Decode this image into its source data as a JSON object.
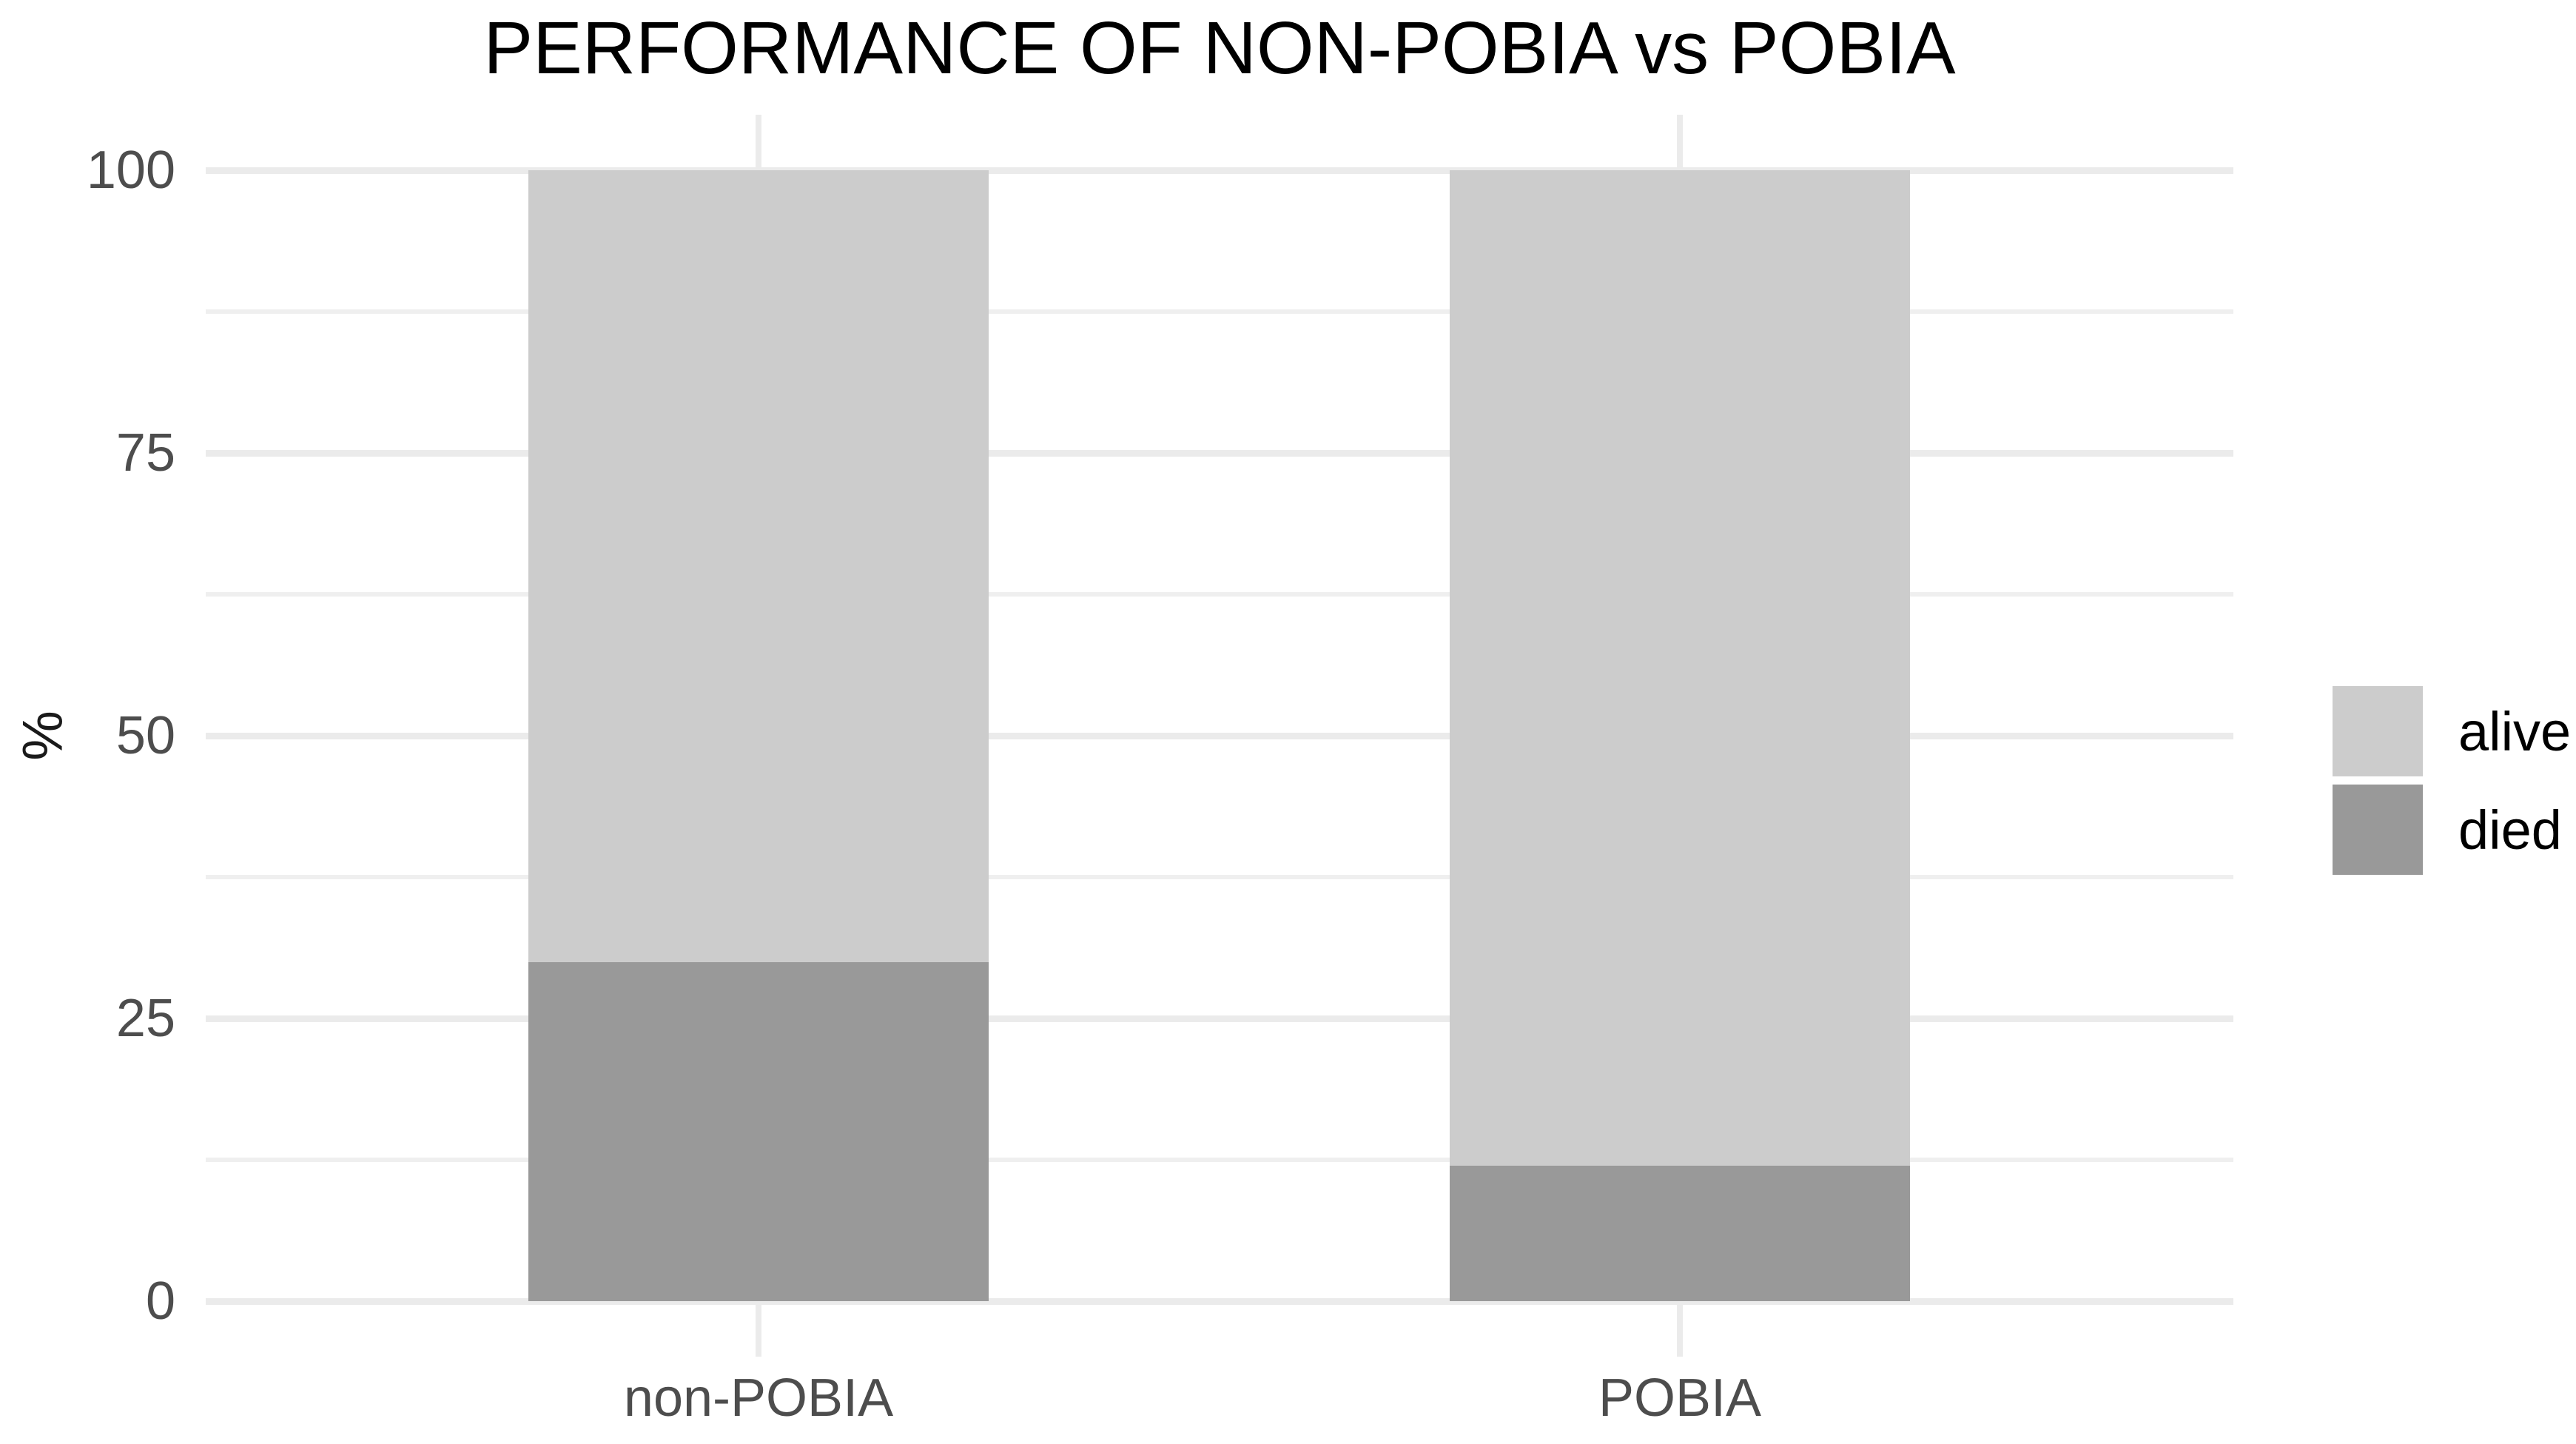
{
  "chart_data": {
    "type": "bar",
    "subtype": "stacked-percent",
    "title": "PERFORMANCE OF NON-POBIA vs POBIA",
    "xlabel": "",
    "ylabel": "%",
    "categories": [
      "non-POBIA",
      "POBIA"
    ],
    "series": [
      {
        "name": "alive",
        "color": "#cccccc",
        "values": [
          70,
          88
        ]
      },
      {
        "name": "died",
        "color": "#999999",
        "values": [
          30,
          12
        ]
      }
    ],
    "stack_bottom_to_top": [
      "died",
      "alive"
    ],
    "ylim": [
      0,
      100
    ],
    "yticks_major": [
      0,
      25,
      50,
      75,
      100
    ],
    "yticks_minor": [
      12.5,
      37.5,
      62.5,
      87.5
    ],
    "grid": "horizontal major+minor, vertical stubs at category centers",
    "legend_position": "right",
    "legend_entries": [
      "alive",
      "died"
    ],
    "colors": {
      "background": "#ffffff",
      "gridline": "#ebebeb",
      "tick_label": "#4d4d4d",
      "title": "#000000",
      "axis_title": "#1a1a1a"
    }
  }
}
